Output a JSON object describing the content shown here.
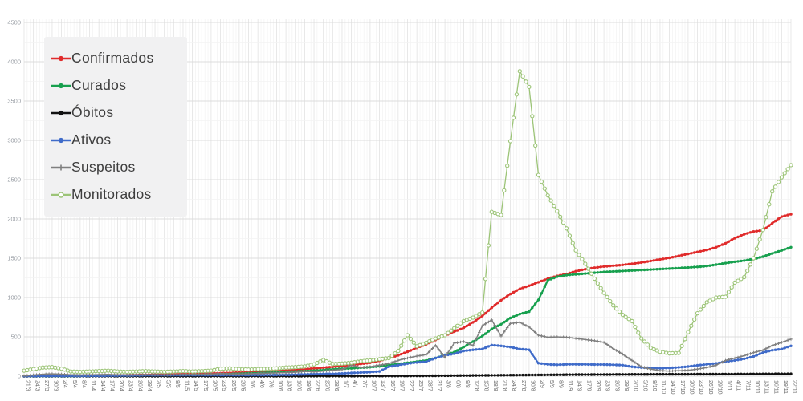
{
  "axes": {
    "y_ticks": [
      0,
      500,
      1000,
      1500,
      2000,
      2500,
      3000,
      3500,
      4000,
      4500
    ],
    "x_label_rotation_deg": 90
  },
  "legend": {
    "position": "top-left",
    "background": "#f1f1f2"
  },
  "chart_data": {
    "type": "line",
    "title": "",
    "xlabel": "",
    "ylabel": "",
    "ylim": [
      0,
      4500
    ],
    "grid": "fine vertical daily gridlines + horizontal every 250/500",
    "legend_position": "top-left",
    "categories": [
      "21/3",
      "24/3",
      "27/3",
      "30/3",
      "2/4",
      "5/4",
      "8/4",
      "11/4",
      "14/4",
      "17/4",
      "20/4",
      "23/4",
      "26/4",
      "29/4",
      "2/5",
      "5/5",
      "8/5",
      "11/5",
      "14/5",
      "17/5",
      "20/5",
      "23/5",
      "26/5",
      "29/5",
      "1/6",
      "4/6",
      "7/6",
      "10/6",
      "13/6",
      "16/6",
      "19/6",
      "22/6",
      "25/6",
      "28/6",
      "1/7",
      "4/7",
      "7/7",
      "10/7",
      "13/7",
      "16/7",
      "19/7",
      "22/7",
      "25/7",
      "28/7",
      "31/7",
      "3/8",
      "6/8",
      "9/8",
      "12/8",
      "15/8",
      "18/8",
      "21/8",
      "24/8",
      "27/8",
      "30/8",
      "2/9",
      "5/9",
      "8/9",
      "11/9",
      "14/9",
      "17/9",
      "20/9",
      "23/9",
      "26/9",
      "29/9",
      "2/10",
      "5/10",
      "8/10",
      "11/10",
      "14/10",
      "17/10",
      "20/10",
      "23/10",
      "26/10",
      "29/10",
      "1/11",
      "4/11",
      "7/11",
      "10/11",
      "13/11",
      "16/11",
      "19/11",
      "22/11"
    ],
    "series": [
      {
        "name": "Confirmados",
        "color": "#e02b2b",
        "marker": "dot",
        "line_width": 2.2,
        "values": [
          0,
          1,
          1,
          2,
          2,
          3,
          4,
          5,
          6,
          8,
          10,
          12,
          15,
          18,
          20,
          22,
          25,
          28,
          30,
          32,
          35,
          38,
          42,
          46,
          50,
          55,
          60,
          66,
          72,
          80,
          88,
          98,
          108,
          118,
          130,
          142,
          155,
          170,
          195,
          230,
          265,
          310,
          360,
          405,
          460,
          515,
          565,
          615,
          685,
          765,
          870,
          965,
          1045,
          1110,
          1150,
          1195,
          1240,
          1275,
          1300,
          1335,
          1360,
          1380,
          1395,
          1405,
          1415,
          1430,
          1445,
          1465,
          1485,
          1505,
          1530,
          1555,
          1580,
          1605,
          1640,
          1690,
          1755,
          1805,
          1840,
          1855,
          1945,
          2030,
          2060
        ]
      },
      {
        "name": "Curados",
        "color": "#17a04e",
        "marker": "dot",
        "line_width": 2.2,
        "values": [
          0,
          0,
          0,
          0,
          0,
          0,
          1,
          1,
          2,
          2,
          3,
          4,
          5,
          6,
          8,
          10,
          12,
          14,
          16,
          18,
          20,
          24,
          28,
          32,
          36,
          40,
          45,
          50,
          55,
          60,
          65,
          70,
          78,
          88,
          95,
          100,
          108,
          115,
          125,
          140,
          155,
          170,
          185,
          200,
          230,
          270,
          305,
          370,
          440,
          510,
          600,
          660,
          740,
          790,
          820,
          970,
          1220,
          1265,
          1285,
          1295,
          1305,
          1315,
          1325,
          1332,
          1338,
          1344,
          1350,
          1356,
          1362,
          1368,
          1375,
          1382,
          1390,
          1400,
          1418,
          1438,
          1455,
          1470,
          1490,
          1520,
          1560,
          1600,
          1640
        ]
      },
      {
        "name": "Óbitos",
        "color": "#111111",
        "marker": "dot",
        "line_width": 1.8,
        "values": [
          0,
          0,
          0,
          0,
          0,
          0,
          0,
          0,
          0,
          0,
          0,
          0,
          0,
          0,
          0,
          0,
          0,
          0,
          0,
          0,
          0,
          0,
          0,
          0,
          0,
          0,
          0,
          0,
          0,
          0,
          0,
          1,
          1,
          1,
          1,
          1,
          1,
          2,
          2,
          2,
          3,
          3,
          4,
          4,
          5,
          6,
          7,
          8,
          9,
          10,
          11,
          12,
          13,
          14,
          15,
          16,
          17,
          18,
          19,
          20,
          20,
          21,
          21,
          22,
          22,
          23,
          23,
          24,
          24,
          25,
          25,
          25,
          26,
          26,
          26,
          27,
          27,
          28,
          28,
          29,
          29,
          30,
          30
        ]
      },
      {
        "name": "Ativos",
        "color": "#3f6bc9",
        "marker": "dot",
        "line_width": 2,
        "values": [
          0,
          1,
          1,
          2,
          2,
          3,
          3,
          4,
          4,
          6,
          7,
          8,
          10,
          12,
          12,
          12,
          13,
          14,
          14,
          14,
          15,
          14,
          14,
          14,
          14,
          15,
          15,
          16,
          17,
          20,
          23,
          27,
          30,
          30,
          34,
          41,
          46,
          52,
          60,
          120,
          140,
          160,
          175,
          185,
          230,
          265,
          285,
          320,
          335,
          345,
          395,
          385,
          370,
          345,
          335,
          165,
          150,
          145,
          150,
          152,
          150,
          148,
          148,
          145,
          140,
          120,
          110,
          105,
          100,
          105,
          112,
          122,
          138,
          150,
          162,
          185,
          200,
          220,
          250,
          300,
          330,
          345,
          385
        ]
      },
      {
        "name": "Suspeitos",
        "color": "#7f7f7f",
        "marker": "plus",
        "line_width": 1.5,
        "values": [
          5,
          15,
          25,
          30,
          25,
          18,
          15,
          18,
          20,
          22,
          18,
          15,
          18,
          20,
          18,
          16,
          18,
          20,
          22,
          25,
          28,
          32,
          30,
          28,
          30,
          35,
          38,
          42,
          45,
          50,
          60,
          55,
          65,
          75,
          85,
          140,
          110,
          120,
          140,
          160,
          200,
          230,
          255,
          275,
          390,
          240,
          420,
          440,
          390,
          640,
          715,
          510,
          670,
          685,
          625,
          520,
          495,
          500,
          495,
          480,
          465,
          450,
          430,
          350,
          280,
          200,
          120,
          90,
          70,
          65,
          70,
          75,
          90,
          110,
          140,
          200,
          230,
          260,
          300,
          330,
          390,
          430,
          470
        ]
      },
      {
        "name": "Monitorados",
        "color": "#9cc477",
        "marker": "open",
        "line_width": 1.3,
        "values": [
          70,
          90,
          110,
          115,
          95,
          60,
          55,
          60,
          65,
          70,
          60,
          55,
          60,
          65,
          60,
          55,
          60,
          65,
          60,
          65,
          70,
          95,
          100,
          90,
          85,
          90,
          95,
          100,
          110,
          115,
          125,
          150,
          205,
          155,
          160,
          170,
          190,
          200,
          215,
          230,
          320,
          520,
          380,
          425,
          480,
          520,
          610,
          700,
          745,
          810,
          2090,
          2050,
          2990,
          3880,
          3680,
          2560,
          2300,
          2100,
          1880,
          1600,
          1430,
          1240,
          1060,
          900,
          780,
          700,
          480,
          360,
          310,
          290,
          295,
          560,
          800,
          940,
          1000,
          1010,
          1190,
          1260,
          1500,
          1860,
          2350,
          2530,
          2685
        ]
      }
    ]
  }
}
